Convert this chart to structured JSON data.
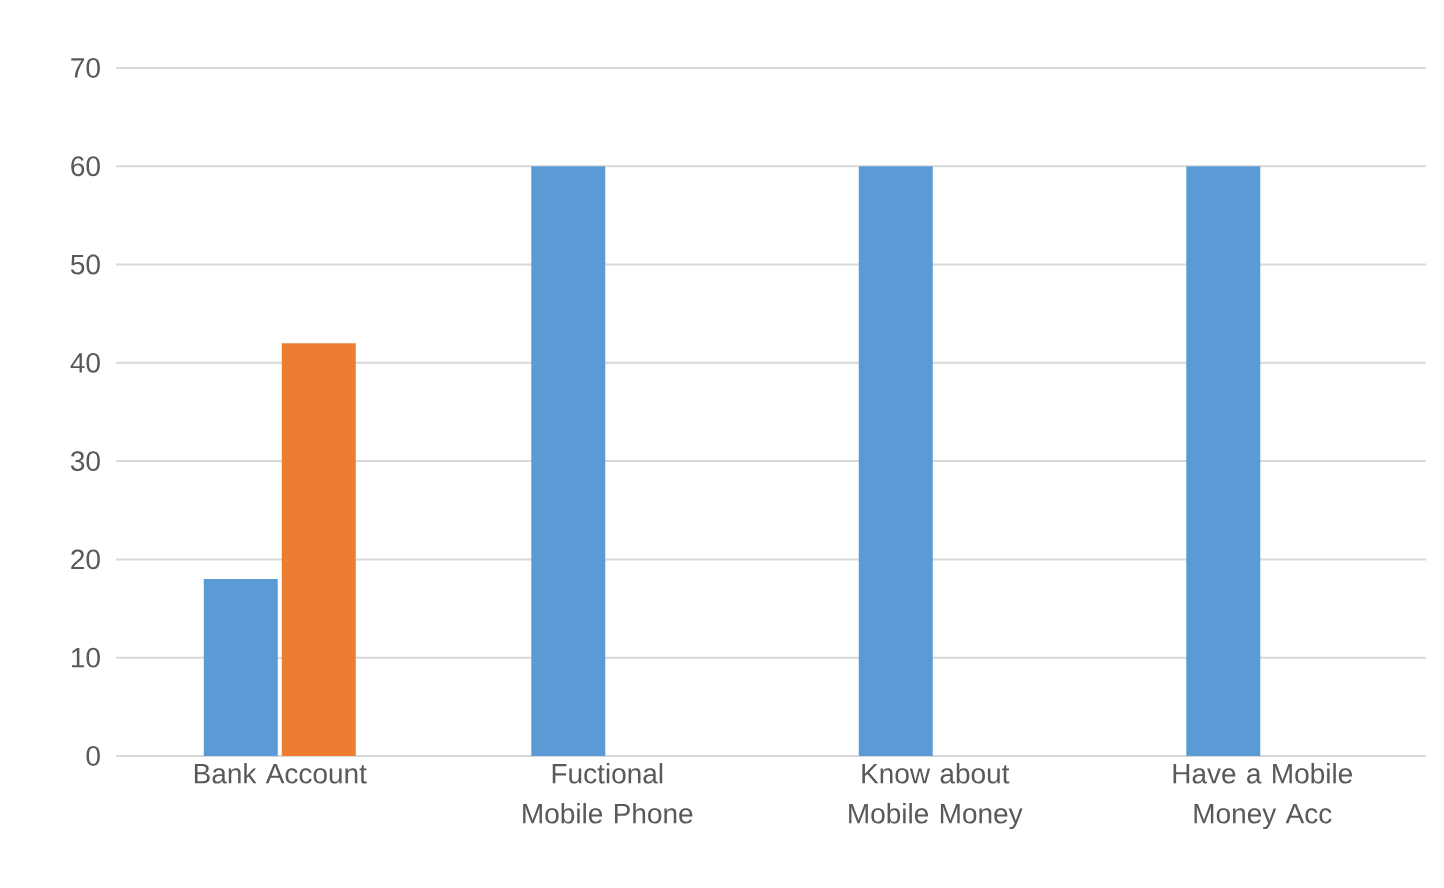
{
  "chart_data": {
    "type": "bar",
    "categories": [
      "Bank Account",
      "Fuctional Mobile Phone",
      "Know about Mobile Money",
      "Have a Mobile Money Acc"
    ],
    "series": [
      {
        "color": "#5b9bd5",
        "values": [
          18,
          60,
          60,
          60
        ]
      },
      {
        "color": "#ed7d31",
        "values": [
          42,
          null,
          null,
          null
        ]
      }
    ],
    "ylim": [
      0,
      70
    ],
    "yticks": [
      0,
      10,
      20,
      30,
      40,
      50,
      60,
      70
    ],
    "grid": "y"
  }
}
